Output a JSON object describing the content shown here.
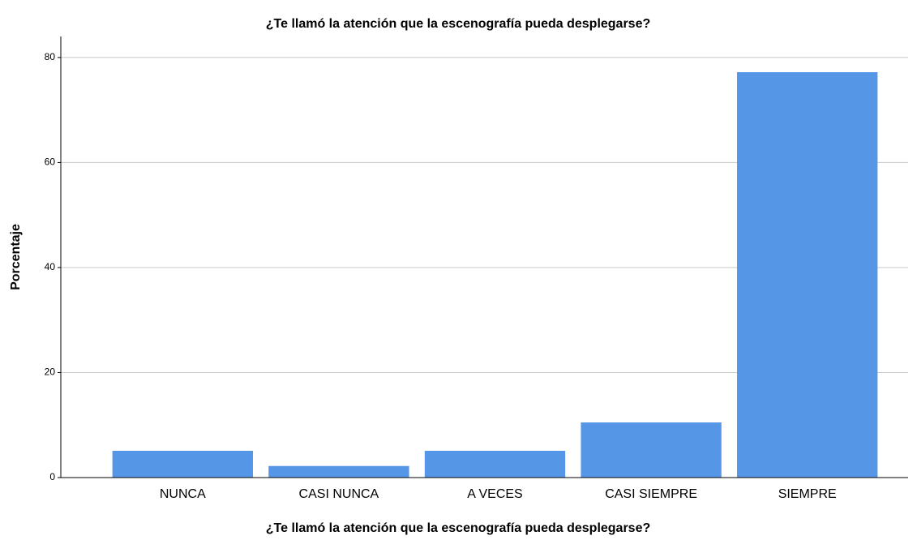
{
  "chart_data": {
    "type": "bar",
    "title": "¿Te llamó la atención que la escenografía pueda desplegarse?",
    "x_label": "¿Te llamó la atención que la escenografía pueda desplegarse?",
    "y_label": "Porcentaje",
    "categories": [
      "NUNCA",
      "CASI NUNCA",
      "A VECES",
      "CASI SIEMPRE",
      "SIEMPRE"
    ],
    "values": [
      5.1,
      2.2,
      5.1,
      10.5,
      77.2
    ],
    "color": "#5596e6",
    "ylim": [
      0,
      84
    ],
    "yticks": [
      0,
      20,
      40,
      60,
      80
    ],
    "grid": true
  }
}
